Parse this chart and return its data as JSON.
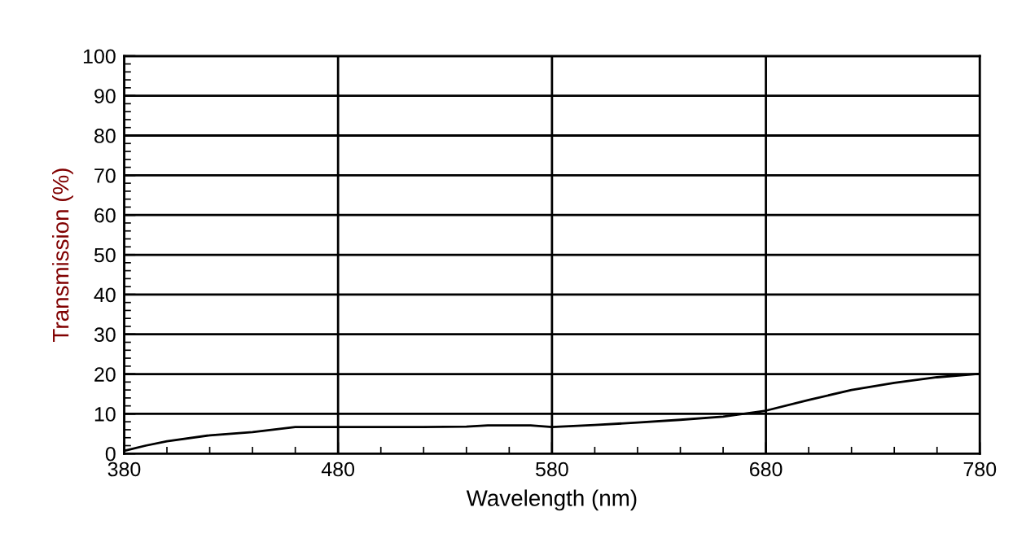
{
  "chart_data": {
    "type": "line",
    "xlabel": "Wavelength (nm)",
    "ylabel": "Transmission (%)",
    "x": [
      380,
      390,
      400,
      420,
      440,
      460,
      480,
      500,
      520,
      540,
      550,
      570,
      580,
      600,
      620,
      640,
      660,
      680,
      700,
      720,
      740,
      760,
      780
    ],
    "series": [
      {
        "color": "#000000",
        "values": [
          0.7,
          2.0,
          3.1,
          4.6,
          5.4,
          6.7,
          6.7,
          6.7,
          6.7,
          6.8,
          7.1,
          7.1,
          6.7,
          7.2,
          7.8,
          8.5,
          9.3,
          10.8,
          13.5,
          16.0,
          17.8,
          19.2,
          20.1
        ]
      }
    ],
    "xlim": [
      380,
      780
    ],
    "xticks": [
      380,
      480,
      580,
      680,
      780
    ],
    "ylim": [
      0,
      100
    ],
    "yticks": [
      0,
      10,
      20,
      30,
      40,
      50,
      60,
      70,
      80,
      90,
      100
    ],
    "grid": true,
    "marker": "none",
    "line_style": "solid"
  }
}
